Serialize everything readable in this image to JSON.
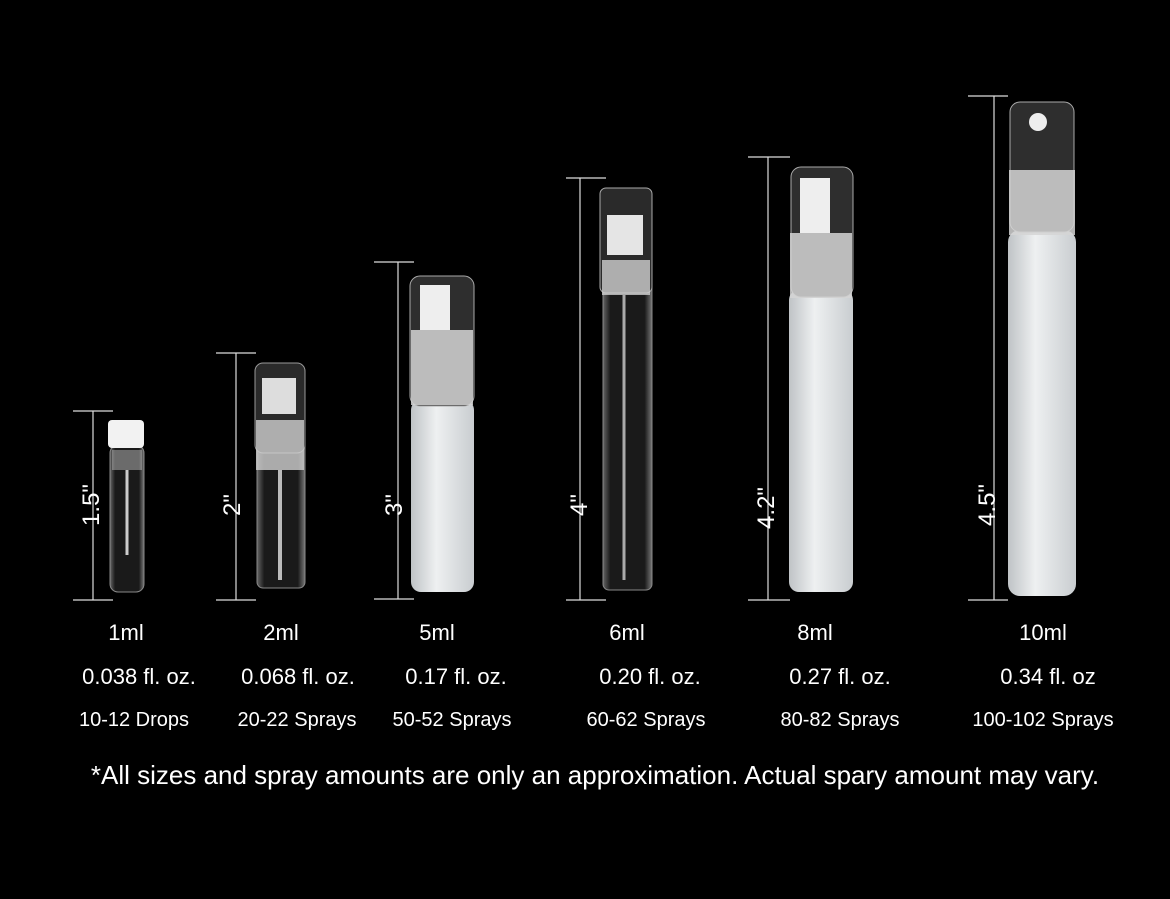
{
  "products": [
    {
      "height": "1.5\"",
      "volume": "1ml",
      "fl_oz": "0.038 fl. oz.",
      "amount": "10-12 Drops"
    },
    {
      "height": "2\"",
      "volume": "2ml",
      "fl_oz": "0.068 fl. oz.",
      "amount": "20-22 Sprays"
    },
    {
      "height": "3\"",
      "volume": "5ml",
      "fl_oz": "0.17 fl. oz.",
      "amount": "50-52 Sprays"
    },
    {
      "height": "4\"",
      "volume": "6ml",
      "fl_oz": "0.20 fl. oz.",
      "amount": "60-62 Sprays"
    },
    {
      "height": "4.2\"",
      "volume": "8ml",
      "fl_oz": "0.27 fl. oz.",
      "amount": "80-82 Sprays"
    },
    {
      "height": "4.5\"",
      "volume": "10ml",
      "fl_oz": "0.34 fl. oz",
      "amount": "100-102 Sprays"
    }
  ],
  "footnote": "*All sizes and spray amounts are only an approximation. Actual spary amount may vary.",
  "colors": {
    "background": "#000000",
    "text": "#ffffff",
    "frosted_body": "#e6e8ea",
    "clear_glass": "#9aa0a4"
  }
}
